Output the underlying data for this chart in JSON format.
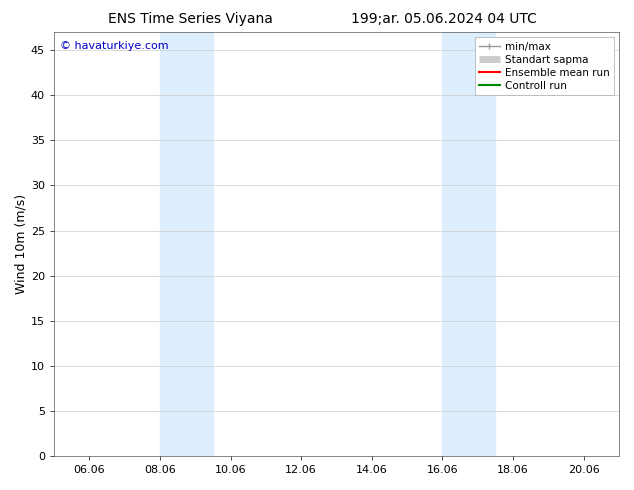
{
  "title_left": "ENS Time Series Viyana",
  "title_right": "199;ar. 05.06.2024 04 UTC",
  "ylabel": "Wind 10m (m/s)",
  "watermark": "© havaturkiye.com",
  "watermark_color": "#0000cc",
  "ylim": [
    0,
    47
  ],
  "yticks": [
    0,
    5,
    10,
    15,
    20,
    25,
    30,
    35,
    40,
    45
  ],
  "xtick_labels": [
    "06.06",
    "08.06",
    "10.06",
    "12.06",
    "14.06",
    "16.06",
    "18.06",
    "20.06"
  ],
  "xtick_positions": [
    1,
    3,
    5,
    7,
    9,
    11,
    13,
    15
  ],
  "xlim": [
    0,
    16
  ],
  "shaded_bands": [
    {
      "xstart": 3,
      "xend": 4.5
    },
    {
      "xstart": 11,
      "xend": 12.5
    }
  ],
  "shaded_color": "#ddeeff",
  "background_color": "#ffffff",
  "legend_items": [
    {
      "label": "min/max",
      "color": "#999999",
      "lw": 1.0,
      "type": "line_with_caps"
    },
    {
      "label": "Standart sapma",
      "color": "#cccccc",
      "lw": 5,
      "type": "thick"
    },
    {
      "label": "Ensemble mean run",
      "color": "#ff0000",
      "lw": 1.5,
      "type": "line"
    },
    {
      "label": "Controll run",
      "color": "#008800",
      "lw": 1.5,
      "type": "line"
    }
  ],
  "spine_color": "#555555",
  "grid_color": "#cccccc",
  "title_fontsize": 10,
  "axis_label_fontsize": 9,
  "tick_fontsize": 8,
  "legend_fontsize": 7.5
}
